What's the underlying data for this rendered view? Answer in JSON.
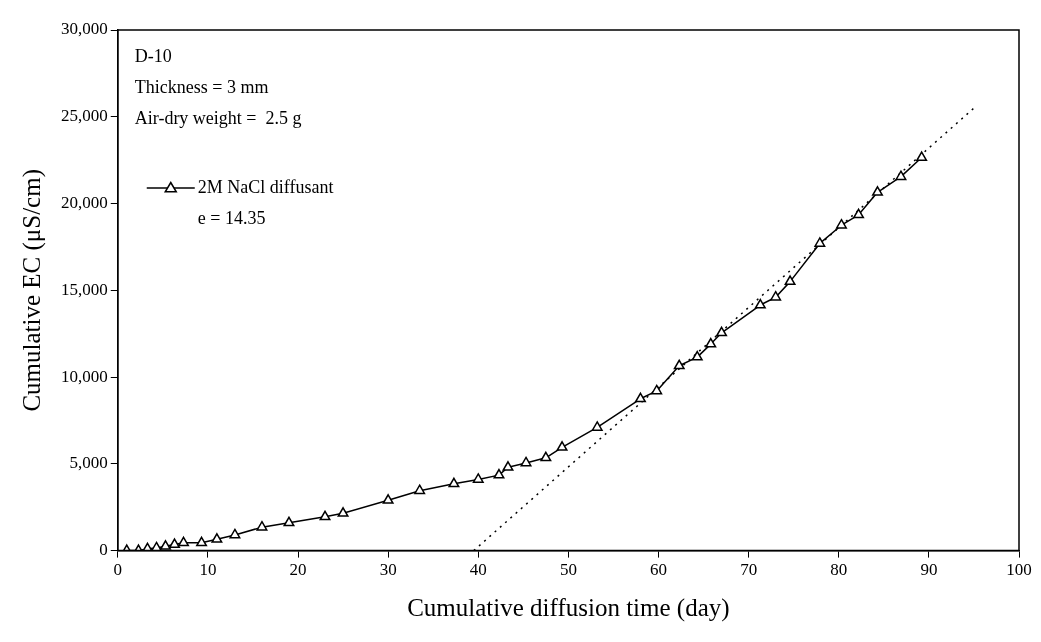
{
  "chart_data": {
    "type": "line",
    "xlabel": "Cumulative diffusion time (day)",
    "ylabel": "Cumulative EC (μS/cm)",
    "annotations": [
      "D-10",
      "Thickness = 3 mm",
      "Air-dry weight =  2.5 g",
      "e = 14.35"
    ],
    "xlim": [
      0,
      100
    ],
    "xticks": [
      0,
      10,
      20,
      30,
      40,
      50,
      60,
      70,
      80,
      90,
      100
    ],
    "ylim": [
      0,
      30000
    ],
    "yticks": [
      {
        "value": 0,
        "label": "0"
      },
      {
        "value": 5000,
        "label": "5,000"
      },
      {
        "value": 10000,
        "label": "10,000"
      },
      {
        "value": 15000,
        "label": "15,000"
      },
      {
        "value": 20000,
        "label": "20,000"
      },
      {
        "value": 25000,
        "label": "25,000"
      },
      {
        "value": 30000,
        "label": "30,000"
      }
    ],
    "grid": false,
    "legend": "top left",
    "series": [
      {
        "name": "2M NaCl diffusant",
        "color": "#000000",
        "marker": "triangle",
        "line_style": "solid",
        "x": [
          1,
          2.3,
          3.3,
          4.3,
          5.3,
          6.3,
          7.3,
          9.3,
          11,
          13,
          16,
          19,
          23,
          25,
          30,
          33.5,
          37.3,
          40,
          42.3,
          43.3,
          45.3,
          47.5,
          49.3,
          53.2,
          58,
          59.8,
          62.3,
          64.3,
          65.8,
          67,
          71.3,
          73,
          74.6,
          77.9,
          80.3,
          82.2,
          84.3,
          86.9,
          89.2
        ],
        "values": [
          0,
          0,
          100,
          150,
          250,
          350,
          450,
          450,
          650,
          900,
          1350,
          1600,
          1950,
          2150,
          2900,
          3450,
          3850,
          4100,
          4350,
          4800,
          5050,
          5350,
          5950,
          7100,
          8750,
          9200,
          10650,
          11150,
          11900,
          12550,
          14150,
          14600,
          15500,
          17700,
          18750,
          19350,
          20650,
          21550,
          22650
        ]
      },
      {
        "type": "line",
        "color": "#000000",
        "marker": "none",
        "line_style": "dotted",
        "x": [
          39.5,
          95
        ],
        "values": [
          0,
          25500
        ]
      }
    ]
  }
}
